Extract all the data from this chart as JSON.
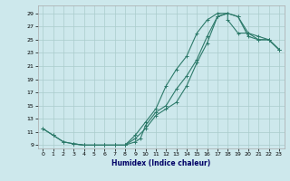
{
  "xlabel": "Humidex (Indice chaleur)",
  "background_color": "#cde8ec",
  "grid_color": "#aacccc",
  "line_color": "#2d7a6a",
  "xlim": [
    -0.5,
    23.5
  ],
  "ylim": [
    8.5,
    30.2
  ],
  "xticks": [
    0,
    1,
    2,
    3,
    4,
    5,
    6,
    7,
    8,
    9,
    10,
    11,
    12,
    13,
    14,
    15,
    16,
    17,
    18,
    19,
    20,
    21,
    22,
    23
  ],
  "yticks": [
    9,
    11,
    13,
    15,
    17,
    19,
    21,
    23,
    25,
    27,
    29
  ],
  "line1_x": [
    0,
    1,
    2,
    3,
    4,
    5,
    6,
    7,
    8,
    9,
    10,
    11,
    12,
    13,
    14,
    15,
    16,
    17,
    18,
    19,
    20,
    21,
    22,
    23
  ],
  "line1_y": [
    11.5,
    10.5,
    9.5,
    9.2,
    9.0,
    9.0,
    9.0,
    9.0,
    9.0,
    10.5,
    12.5,
    14.5,
    18.0,
    20.5,
    22.5,
    26.0,
    28.0,
    29.0,
    29.0,
    28.5,
    26.0,
    25.0,
    25.0,
    23.5
  ],
  "line2_x": [
    0,
    1,
    2,
    3,
    4,
    5,
    6,
    7,
    8,
    9,
    9.5,
    10,
    11,
    12,
    13,
    14,
    15,
    16,
    17,
    18,
    19,
    20,
    21,
    22,
    23
  ],
  "line2_y": [
    11.5,
    10.5,
    9.5,
    9.2,
    9.0,
    9.0,
    9.0,
    9.0,
    9.0,
    9.5,
    10.0,
    12.0,
    14.0,
    15.0,
    17.5,
    19.5,
    22.0,
    25.5,
    28.5,
    29.0,
    28.5,
    25.5,
    25.0,
    25.0,
    23.5
  ],
  "line3_x": [
    3,
    4,
    5,
    6,
    7,
    8,
    9,
    10,
    11,
    12,
    13,
    14,
    15,
    16,
    17,
    18,
    18,
    19,
    20,
    21,
    22,
    23
  ],
  "line3_y": [
    9.2,
    9.0,
    9.0,
    9.0,
    9.0,
    9.0,
    10.0,
    11.5,
    13.5,
    14.5,
    15.5,
    18.0,
    21.5,
    24.5,
    28.5,
    29.0,
    28.0,
    26.0,
    26.0,
    25.5,
    25.0,
    23.5
  ]
}
